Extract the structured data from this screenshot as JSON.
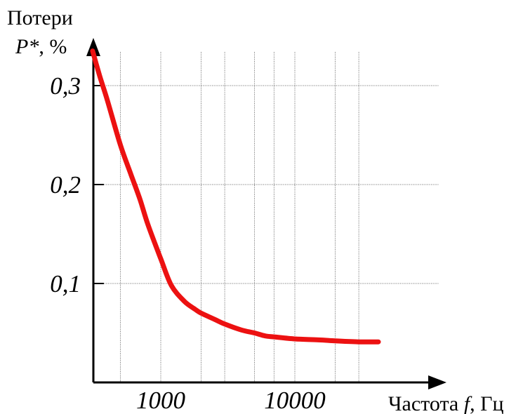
{
  "chart_data": {
    "type": "line",
    "x_scale": "log",
    "grid": true,
    "ylabel_line1": "Потери",
    "ylabel_line2_var": "P*",
    "ylabel_line2_rest": ", %",
    "xlabel_pre": "Частота ",
    "xlabel_var": "f",
    "xlabel_post": ", Гц",
    "xlim": [
      300,
      45000
    ],
    "ylim": [
      0,
      0.35
    ],
    "x_ticks": [
      {
        "value": 1000,
        "label": "1000"
      },
      {
        "value": 10000,
        "label": "10000"
      }
    ],
    "y_ticks": [
      {
        "value": 0.1,
        "label": "0,1"
      },
      {
        "value": 0.2,
        "label": "0,2"
      },
      {
        "value": 0.3,
        "label": "0,3"
      }
    ],
    "x_grid": [
      500,
      1000,
      2000,
      3000,
      5000,
      7000,
      10000,
      20000,
      30000
    ],
    "y_grid": [
      0.1,
      0.2,
      0.3
    ],
    "color": "#ec1111",
    "series": [
      {
        "x": [
          310,
          350,
          400,
          500,
          600,
          700,
          800,
          1000,
          1200,
          1500,
          1800,
          2000,
          2500,
          3000,
          4000,
          5000,
          6000,
          7000,
          10000,
          15000,
          20000,
          30000,
          42000
        ],
        "y": [
          0.335,
          0.31,
          0.285,
          0.24,
          0.21,
          0.185,
          0.16,
          0.125,
          0.098,
          0.082,
          0.074,
          0.07,
          0.064,
          0.059,
          0.053,
          0.05,
          0.047,
          0.046,
          0.044,
          0.043,
          0.042,
          0.041,
          0.041
        ]
      }
    ]
  }
}
